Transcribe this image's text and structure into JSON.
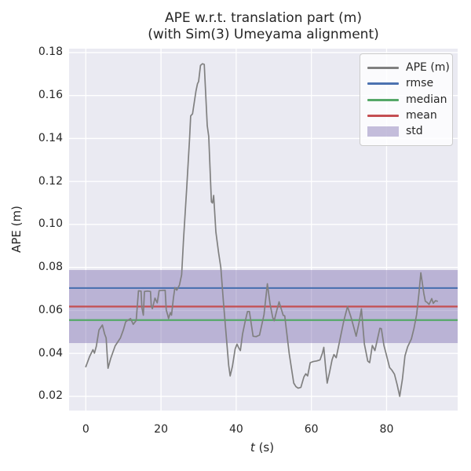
{
  "chart_data": {
    "type": "line",
    "title_line1": "APE w.r.t. translation part (m)",
    "title_line2": "(with Sim(3) Umeyama alignment)",
    "xlabel": "t (s)",
    "xlabel_var": "t",
    "xlabel_unit": " (s)",
    "ylabel": "APE (m)",
    "grid": true,
    "legend_position": "upper right",
    "xlim": [
      -4.45,
      98.9
    ],
    "ylim": [
      0.0134,
      0.1818
    ],
    "xticks": [
      0,
      20,
      40,
      60,
      80
    ],
    "xtick_labels": [
      "0",
      "20",
      "40",
      "60",
      "80"
    ],
    "yticks": [
      0.02,
      0.04,
      0.06,
      0.08,
      0.1,
      0.12,
      0.14,
      0.16,
      0.18
    ],
    "ytick_labels": [
      "0.02",
      "0.04",
      "0.06",
      "0.08",
      "0.10",
      "0.12",
      "0.14",
      "0.16",
      "0.18"
    ],
    "stats": {
      "rmse": 0.0704,
      "mean": 0.0618,
      "median": 0.0555,
      "std": 0.017
    },
    "colors": {
      "figure_bg": "#ffffff",
      "axes_bg": "#EAEAF2",
      "grid": "#ffffff",
      "ape": "#808080",
      "rmse": "#4C72B0",
      "median": "#55A868",
      "mean": "#C44E52",
      "std_fill": "rgba(129,114,178,0.45)",
      "text": "#262626"
    },
    "legend": [
      {
        "label": "APE (m)",
        "color": "#808080",
        "swatch": "line"
      },
      {
        "label": "rmse",
        "color": "#4C72B0",
        "swatch": "line"
      },
      {
        "label": "median",
        "color": "#55A868",
        "swatch": "line"
      },
      {
        "label": "mean",
        "color": "#C44E52",
        "swatch": "line"
      },
      {
        "label": "std",
        "color": "rgba(129,114,178,0.45)",
        "swatch": "patch"
      }
    ],
    "series_name": "APE (m)",
    "series": [
      [
        0.0,
        0.0338
      ],
      [
        1.0,
        0.0385
      ],
      [
        1.9,
        0.0417
      ],
      [
        2.3,
        0.0401
      ],
      [
        2.8,
        0.0433
      ],
      [
        3.5,
        0.0509
      ],
      [
        4.4,
        0.0532
      ],
      [
        5.0,
        0.049
      ],
      [
        5.4,
        0.0472
      ],
      [
        5.9,
        0.0331
      ],
      [
        6.6,
        0.0375
      ],
      [
        7.8,
        0.0435
      ],
      [
        9.2,
        0.0472
      ],
      [
        10.0,
        0.051
      ],
      [
        10.6,
        0.0547
      ],
      [
        11.4,
        0.0557
      ],
      [
        11.9,
        0.0562
      ],
      [
        12.6,
        0.0535
      ],
      [
        13.4,
        0.0553
      ],
      [
        14.0,
        0.0691
      ],
      [
        14.7,
        0.069
      ],
      [
        14.9,
        0.0614
      ],
      [
        15.3,
        0.0578
      ],
      [
        15.6,
        0.0688
      ],
      [
        16.4,
        0.069
      ],
      [
        17.2,
        0.0688
      ],
      [
        17.4,
        0.0621
      ],
      [
        17.7,
        0.0608
      ],
      [
        18.4,
        0.0657
      ],
      [
        19.0,
        0.0635
      ],
      [
        19.5,
        0.0692
      ],
      [
        21.1,
        0.0694
      ],
      [
        21.4,
        0.0602
      ],
      [
        21.8,
        0.0578
      ],
      [
        22.0,
        0.0562
      ],
      [
        22.5,
        0.059
      ],
      [
        22.8,
        0.0578
      ],
      [
        23.3,
        0.0657
      ],
      [
        23.7,
        0.0706
      ],
      [
        24.2,
        0.0694
      ],
      [
        24.9,
        0.0718
      ],
      [
        25.5,
        0.0766
      ],
      [
        26.0,
        0.0931
      ],
      [
        26.8,
        0.116
      ],
      [
        27.6,
        0.14
      ],
      [
        27.9,
        0.1505
      ],
      [
        28.4,
        0.1515
      ],
      [
        29.3,
        0.162
      ],
      [
        29.7,
        0.1655
      ],
      [
        30.0,
        0.1665
      ],
      [
        30.5,
        0.174
      ],
      [
        31.0,
        0.1748
      ],
      [
        31.5,
        0.1745
      ],
      [
        32.3,
        0.146
      ],
      [
        32.7,
        0.141
      ],
      [
        33.4,
        0.1105
      ],
      [
        33.7,
        0.11
      ],
      [
        34.0,
        0.1135
      ],
      [
        34.6,
        0.0965
      ],
      [
        35.3,
        0.087
      ],
      [
        35.9,
        0.08
      ],
      [
        36.6,
        0.064
      ],
      [
        37.3,
        0.049
      ],
      [
        38.0,
        0.0345
      ],
      [
        38.4,
        0.0295
      ],
      [
        39.0,
        0.034
      ],
      [
        39.7,
        0.042
      ],
      [
        40.2,
        0.0443
      ],
      [
        40.7,
        0.0425
      ],
      [
        41.1,
        0.0413
      ],
      [
        41.7,
        0.049
      ],
      [
        42.4,
        0.055
      ],
      [
        43.0,
        0.0595
      ],
      [
        43.5,
        0.0595
      ],
      [
        44.5,
        0.048
      ],
      [
        45.3,
        0.0478
      ],
      [
        46.2,
        0.0485
      ],
      [
        47.4,
        0.058
      ],
      [
        48.3,
        0.0724
      ],
      [
        49.0,
        0.063
      ],
      [
        49.7,
        0.0567
      ],
      [
        50.1,
        0.0552
      ],
      [
        50.8,
        0.06
      ],
      [
        51.4,
        0.064
      ],
      [
        52.5,
        0.0577
      ],
      [
        52.9,
        0.0575
      ],
      [
        54.1,
        0.04
      ],
      [
        54.7,
        0.033
      ],
      [
        55.3,
        0.0262
      ],
      [
        55.9,
        0.0245
      ],
      [
        56.5,
        0.0238
      ],
      [
        57.2,
        0.0242
      ],
      [
        58.0,
        0.029
      ],
      [
        58.5,
        0.0305
      ],
      [
        59.0,
        0.0295
      ],
      [
        59.7,
        0.0357
      ],
      [
        60.5,
        0.0362
      ],
      [
        61.4,
        0.0365
      ],
      [
        62.3,
        0.037
      ],
      [
        62.9,
        0.04
      ],
      [
        63.3,
        0.0428
      ],
      [
        63.7,
        0.035
      ],
      [
        64.2,
        0.0262
      ],
      [
        64.8,
        0.031
      ],
      [
        65.5,
        0.037
      ],
      [
        66.0,
        0.0395
      ],
      [
        66.6,
        0.038
      ],
      [
        67.7,
        0.0474
      ],
      [
        68.6,
        0.055
      ],
      [
        69.6,
        0.0618
      ],
      [
        70.5,
        0.057
      ],
      [
        71.3,
        0.052
      ],
      [
        71.9,
        0.048
      ],
      [
        72.7,
        0.0545
      ],
      [
        73.3,
        0.0607
      ],
      [
        74.1,
        0.0443
      ],
      [
        75.0,
        0.0364
      ],
      [
        75.5,
        0.0357
      ],
      [
        76.2,
        0.0437
      ],
      [
        76.9,
        0.0413
      ],
      [
        78.2,
        0.0517
      ],
      [
        78.6,
        0.0515
      ],
      [
        79.3,
        0.0437
      ],
      [
        80.0,
        0.0389
      ],
      [
        80.8,
        0.0334
      ],
      [
        81.4,
        0.0322
      ],
      [
        82.1,
        0.0303
      ],
      [
        82.8,
        0.0255
      ],
      [
        83.5,
        0.02
      ],
      [
        84.2,
        0.0279
      ],
      [
        84.9,
        0.0389
      ],
      [
        85.6,
        0.0431
      ],
      [
        86.6,
        0.0468
      ],
      [
        87.3,
        0.0517
      ],
      [
        88.0,
        0.0582
      ],
      [
        88.6,
        0.068
      ],
      [
        89.1,
        0.0775
      ],
      [
        89.9,
        0.0679
      ],
      [
        90.3,
        0.0643
      ],
      [
        90.8,
        0.0637
      ],
      [
        91.3,
        0.0628
      ],
      [
        92.0,
        0.0655
      ],
      [
        92.4,
        0.0633
      ],
      [
        93.0,
        0.0645
      ],
      [
        93.5,
        0.0643
      ]
    ]
  }
}
